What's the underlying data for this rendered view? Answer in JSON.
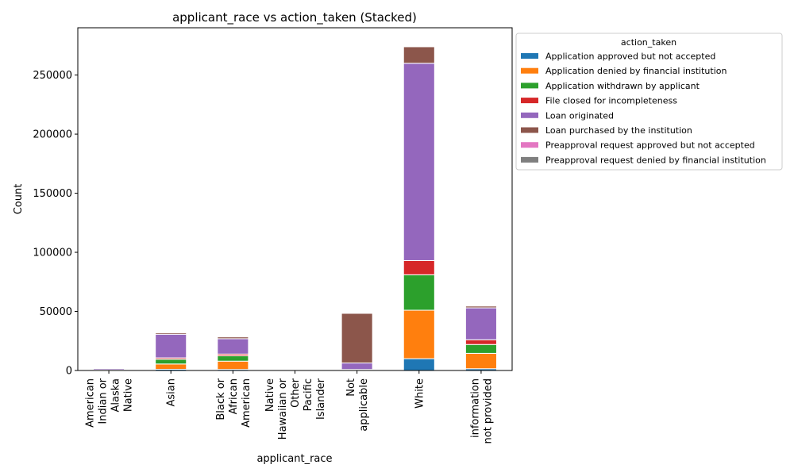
{
  "chart_data": {
    "type": "bar",
    "stacked": true,
    "title": "applicant_race vs action_taken (Stacked)",
    "xlabel": "applicant_race",
    "ylabel": "Count",
    "ylim": [
      0,
      290000
    ],
    "yticks": [
      0,
      50000,
      100000,
      150000,
      200000,
      250000
    ],
    "legend_title": "action_taken",
    "legend_placement": "outside-right",
    "categories": [
      [
        "American",
        "Indian or",
        "Alaska",
        "Native"
      ],
      [
        "Asian"
      ],
      [
        "Black or",
        "African",
        "American"
      ],
      [
        "Native",
        "Hawaiian or",
        "Other",
        "Pacific",
        "Islander"
      ],
      [
        "Not",
        "applicable"
      ],
      [
        "White"
      ],
      [
        "information",
        "not provided"
      ]
    ],
    "series": [
      {
        "name": "Application approved but not accepted",
        "color": "#1f77b4",
        "values": [
          50,
          1000,
          900,
          40,
          100,
          10000,
          1500
        ]
      },
      {
        "name": "Application denied by financial institution",
        "color": "#ff7f0e",
        "values": [
          300,
          4500,
          7000,
          150,
          300,
          41000,
          13000
        ]
      },
      {
        "name": "Application withdrawn by applicant",
        "color": "#2ca02c",
        "values": [
          150,
          4000,
          4500,
          80,
          300,
          30000,
          7500
        ]
      },
      {
        "name": "File closed for incompleteness",
        "color": "#d62728",
        "values": [
          30,
          1200,
          1500,
          20,
          150,
          12000,
          4000
        ]
      },
      {
        "name": "Loan originated",
        "color": "#9467bd",
        "values": [
          1100,
          20000,
          13000,
          200,
          5500,
          167000,
          27000
        ]
      },
      {
        "name": "Loan purchased by the institution",
        "color": "#8c564b",
        "values": [
          100,
          1200,
          1500,
          80,
          42000,
          14000,
          1500
        ]
      },
      {
        "name": "Preapproval request approved but not accepted",
        "color": "#e377c2",
        "values": [
          0,
          0,
          0,
          0,
          0,
          200,
          0
        ]
      },
      {
        "name": "Preapproval request denied by financial institution",
        "color": "#7f7f7f",
        "values": [
          0,
          0,
          0,
          0,
          0,
          200,
          0
        ]
      }
    ]
  }
}
